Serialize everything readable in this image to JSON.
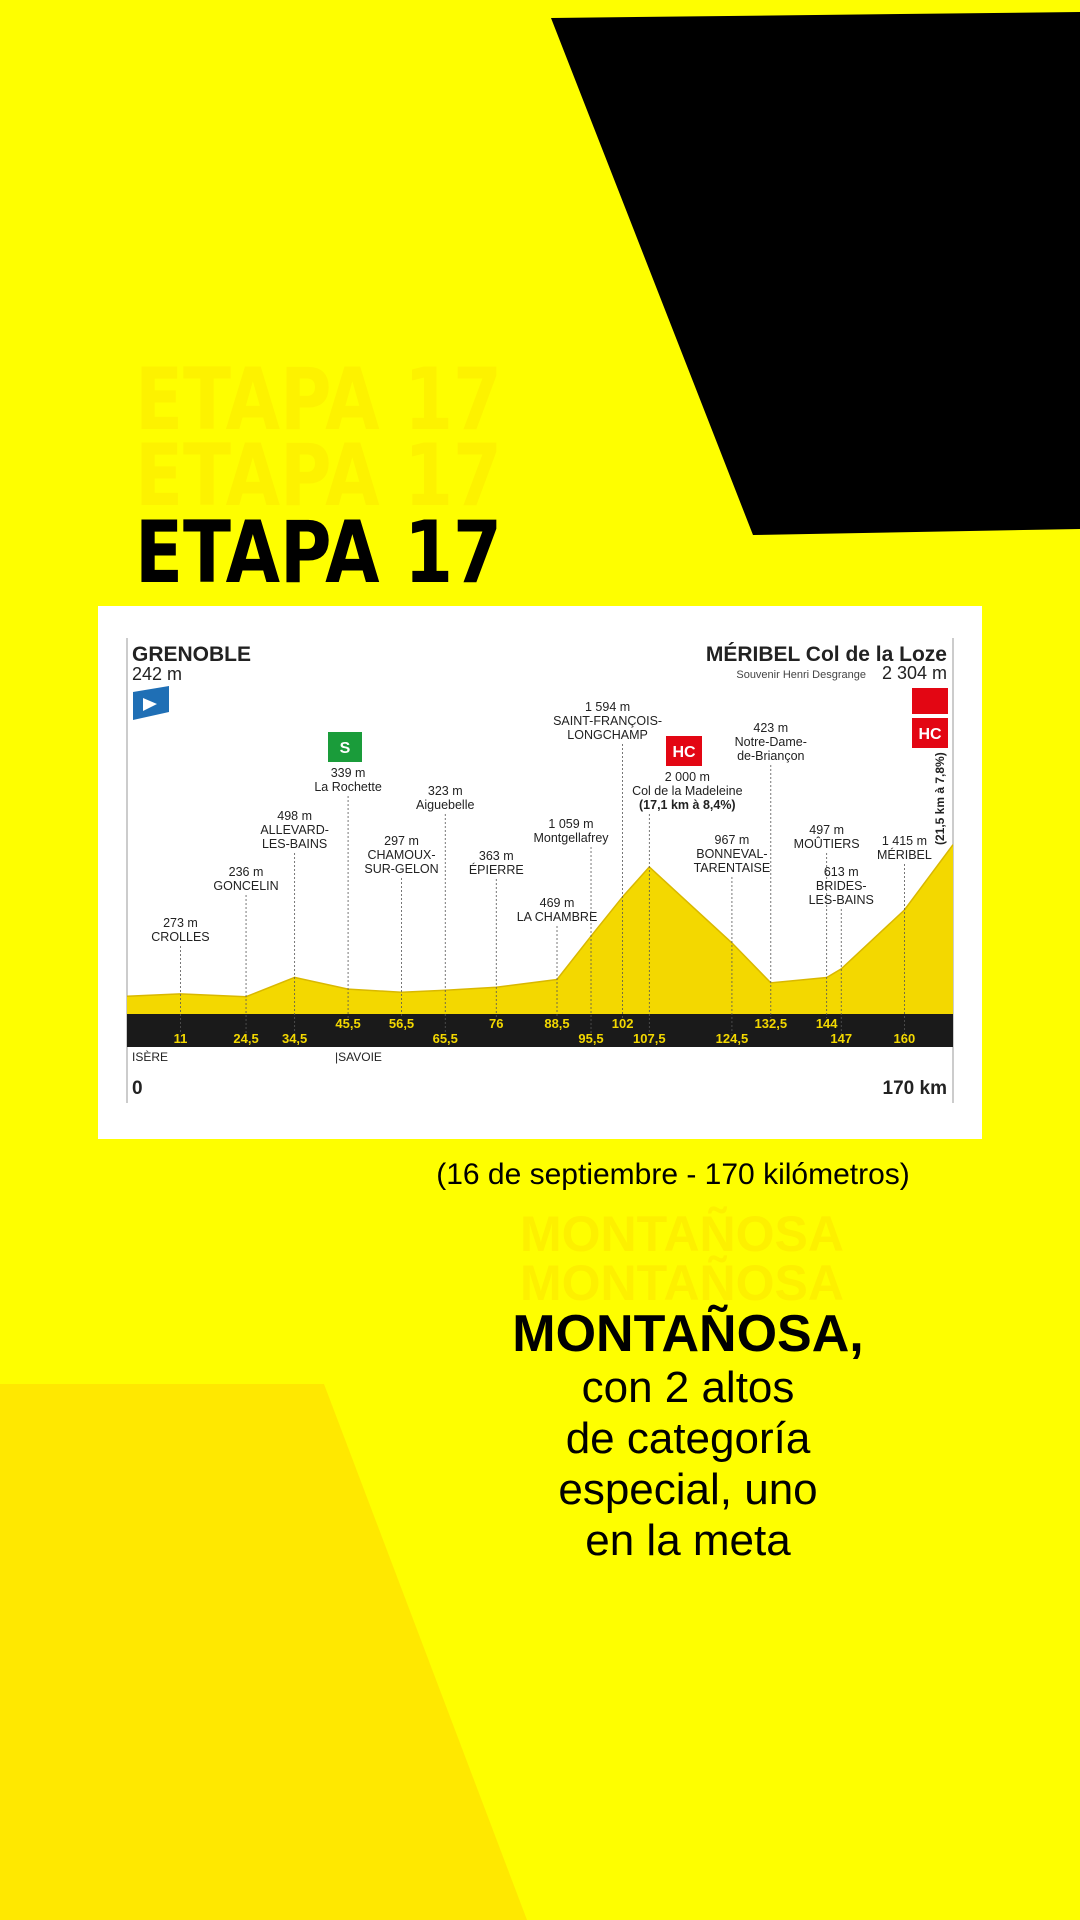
{
  "header": {
    "title": "ETAPA 17"
  },
  "profile": {
    "start": {
      "name": "GRENOBLE",
      "elevation": 242,
      "elevation_label": "242 m",
      "km": 0
    },
    "finish": {
      "name": "MÉRIBEL Col de la Loze",
      "subtitle": "Souvenir Henri Desgrange",
      "elevation": 2304,
      "elevation_label": "2 304 m",
      "km": 170,
      "km_label": "170 km",
      "climb": "(21,5 km à 7,8%)"
    },
    "icons": {
      "sprint": "S",
      "hc": "HC"
    },
    "regions": [
      "ISÈRE",
      "|SAVOIE"
    ],
    "points": [
      {
        "km": 11,
        "km_label": "11",
        "elevation": 273,
        "elevation_label": "273 m",
        "name": [
          "CROLLES"
        ]
      },
      {
        "km": 24.5,
        "km_label": "24,5",
        "elevation": 236,
        "elevation_label": "236 m",
        "name": [
          "GONCELIN"
        ]
      },
      {
        "km": 34.5,
        "km_label": "34,5",
        "elevation": 498,
        "elevation_label": "498 m",
        "name": [
          "ALLEVARD-",
          "LES-BAINS"
        ]
      },
      {
        "km": 45.5,
        "km_label": "45,5",
        "elevation": 339,
        "elevation_label": "339 m",
        "name": [
          "La Rochette"
        ]
      },
      {
        "km": 56.5,
        "km_label": "56,5",
        "elevation": 297,
        "elevation_label": "297 m",
        "name": [
          "CHAMOUX-",
          "SUR-GELON"
        ]
      },
      {
        "km": 65.5,
        "km_label": "65,5",
        "elevation": 323,
        "elevation_label": "323 m",
        "name": [
          "Aiguebelle"
        ]
      },
      {
        "km": 76,
        "km_label": "76",
        "elevation": 363,
        "elevation_label": "363 m",
        "name": [
          "ÉPIERRE"
        ]
      },
      {
        "km": 88.5,
        "km_label": "88,5",
        "elevation": 469,
        "elevation_label": "469 m",
        "name": [
          "LA CHAMBRE"
        ]
      },
      {
        "km": 95.5,
        "km_label": "95,5",
        "elevation": 1059,
        "elevation_label": "1 059 m",
        "name": [
          "Montgellafrey"
        ]
      },
      {
        "km": 102,
        "km_label": "102",
        "elevation": 1594,
        "elevation_label": "1 594 m",
        "name": [
          "SAINT-FRANÇOIS-",
          "LONGCHAMP"
        ]
      },
      {
        "km": 107.5,
        "km_label": "107,5",
        "elevation": 2000,
        "elevation_label": "2 000 m",
        "name": [
          "Col de la Madeleine",
          "(17,1 km à 8,4%)"
        ]
      },
      {
        "km": 124.5,
        "km_label": "124,5",
        "elevation": 967,
        "elevation_label": "967 m",
        "name": [
          "BONNEVAL-",
          "TARENTAISE"
        ]
      },
      {
        "km": 132.5,
        "km_label": "132,5",
        "elevation": 423,
        "elevation_label": "423 m",
        "name": [
          "Notre-Dame-",
          "de-Briançon"
        ]
      },
      {
        "km": 144,
        "km_label": "144",
        "elevation": 497,
        "elevation_label": "497 m",
        "name": [
          "MOÛTIERS"
        ]
      },
      {
        "km": 147,
        "km_label": "147",
        "elevation": 613,
        "elevation_label": "613 m",
        "name": [
          "BRIDES-",
          "LES-BAINS"
        ]
      },
      {
        "km": 160,
        "km_label": "160",
        "elevation": 1415,
        "elevation_label": "1 415 m",
        "name": [
          "MÉRIBEL"
        ]
      }
    ]
  },
  "info": {
    "date": "(16 de septiembre - 170  kilómetros)",
    "type": "MONTAÑOSA",
    "type_bold": "MONTAÑOSA,",
    "lines": [
      "con 2 altos",
      "de categoría",
      "especial, uno",
      "en la meta"
    ]
  }
}
